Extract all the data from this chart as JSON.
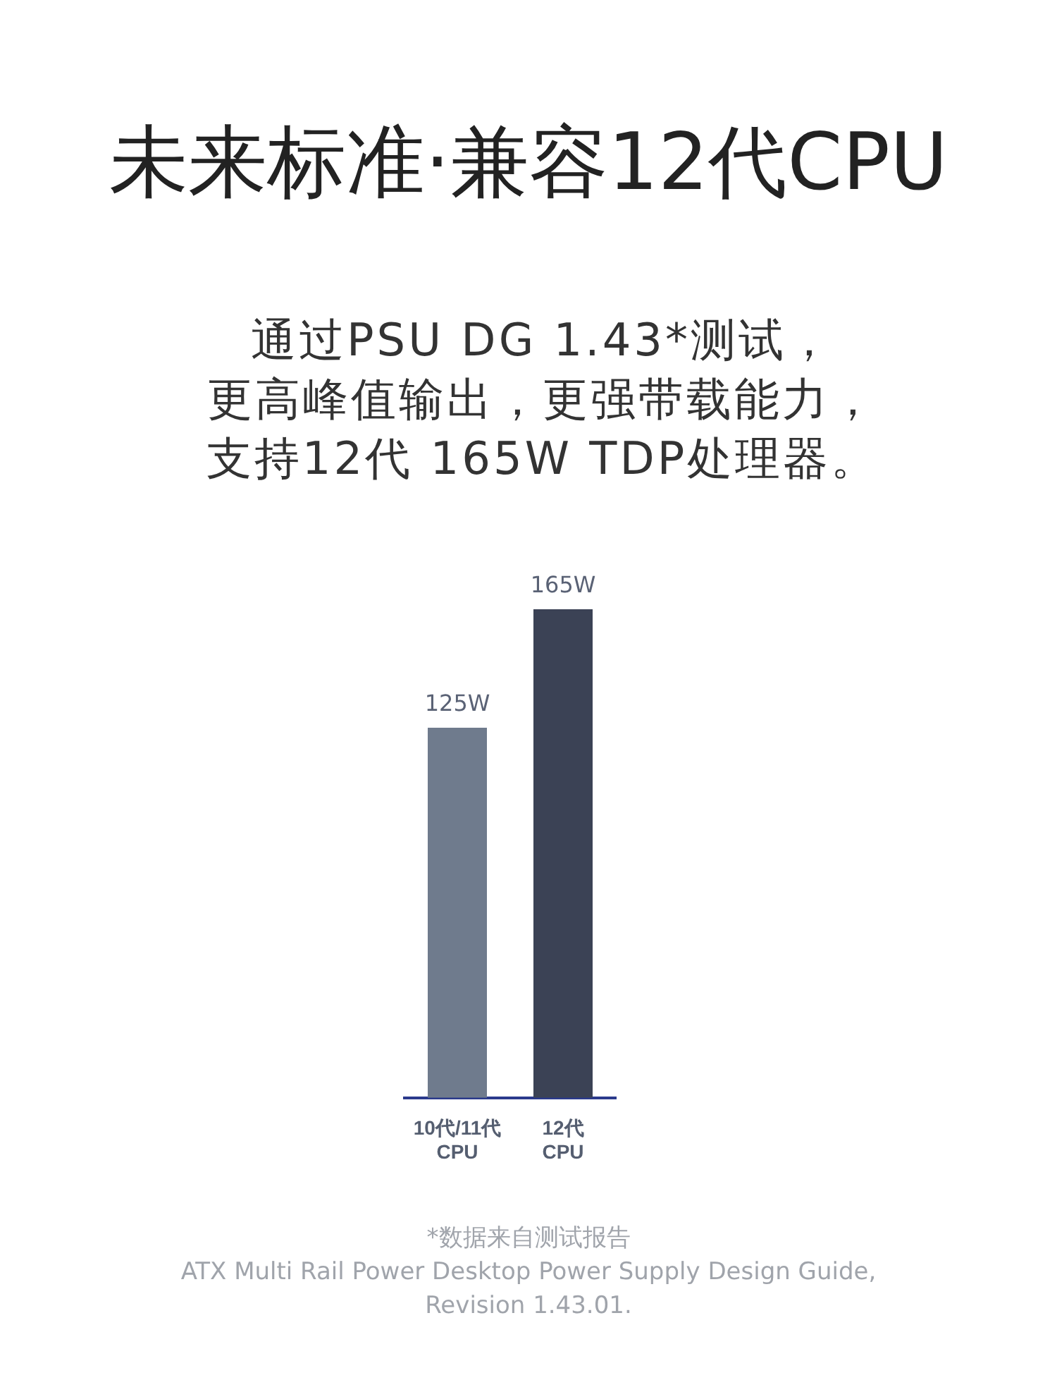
{
  "chart_data": {
    "type": "bar",
    "title": "未来标准·兼容12代CPU",
    "subtitle": "通过PSU DG 1.43*测试，更高峰值输出，更强带载能力，支持12代 165W TDP处理器。",
    "categories": [
      "10代/11代\nCPU",
      "12代\nCPU"
    ],
    "values": [
      125,
      165
    ],
    "colors": [
      "#6f7b8d",
      "#3b4255"
    ],
    "value_labels": [
      "125W",
      "165W"
    ],
    "grid": false,
    "annotations": [
      "*数据来自测试报告\nATX Multi Rail Power Desktop Power Supply Design Guide,\nRevision 1.43.01."
    ]
  }
}
